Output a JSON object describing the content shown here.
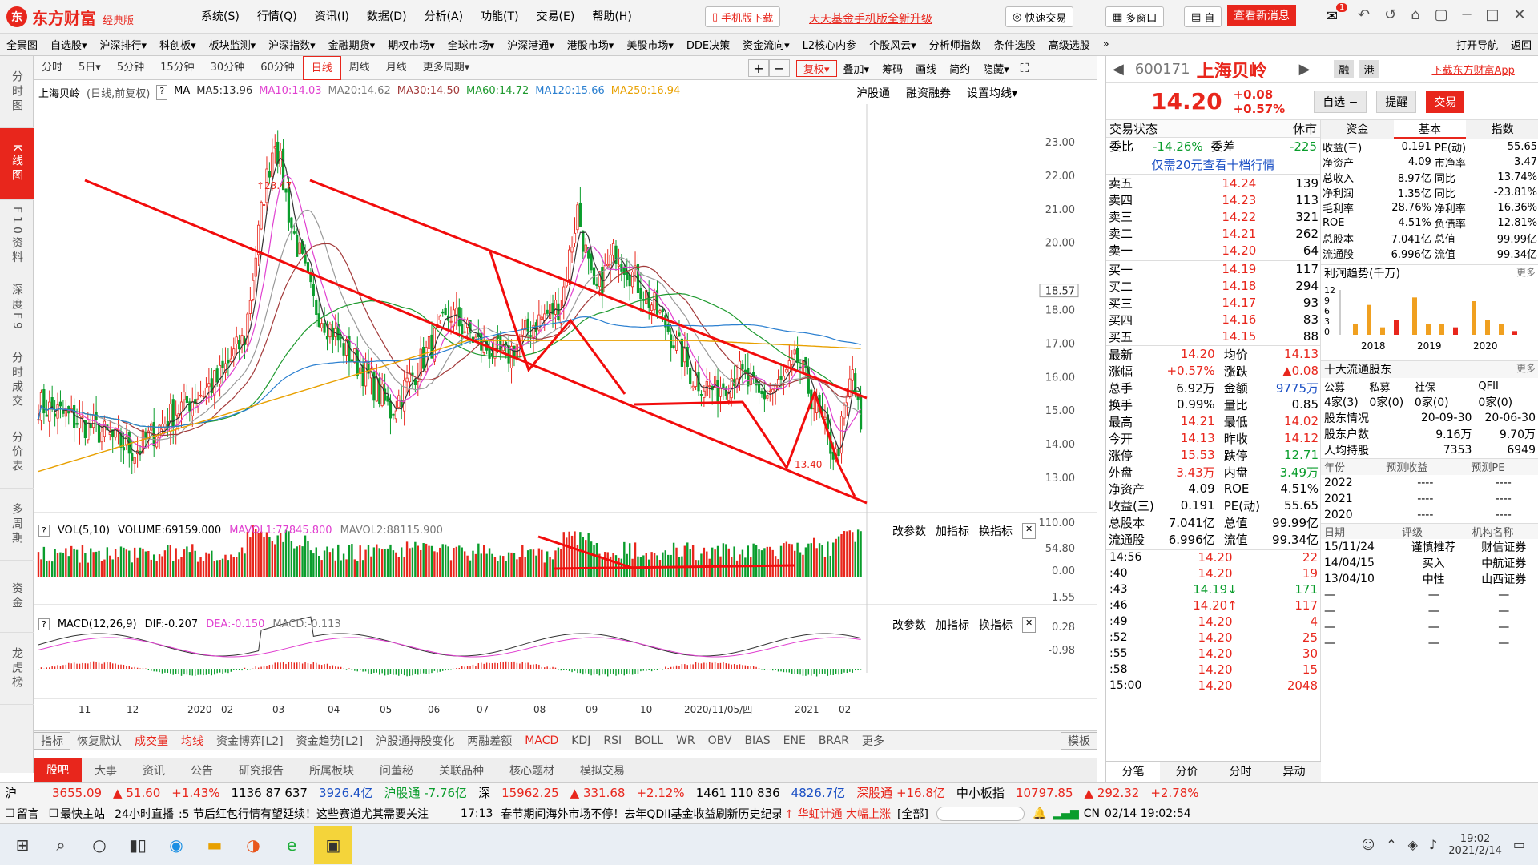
{
  "app": {
    "brand": "东方财富",
    "edition": "经典版",
    "logo_mark": "东"
  },
  "menu": [
    "系统(S)",
    "行情(Q)",
    "资讯(I)",
    "数据(D)",
    "分析(A)",
    "功能(T)",
    "交易(E)",
    "帮助(H)"
  ],
  "topbuttons": {
    "mobile": "手机版下载",
    "fund": "天天基金手机版全新升级",
    "quick_trade": "快速交易",
    "multi_window": "多窗口",
    "custom": "自",
    "news": "查看新消息",
    "badge": "1"
  },
  "nav": [
    "全景图",
    "自选股▾",
    "沪深排行▾",
    "科创板▾",
    "板块监测▾",
    "沪深指数▾",
    "金融期货▾",
    "期权市场▾",
    "全球市场▾",
    "沪深港通▾",
    "港股市场▾",
    "美股市场▾",
    "DDE决策",
    "资金流向▾",
    "L2核心内参",
    "个股风云▾",
    "分析师指数",
    "条件选股",
    "高级选股",
    "»",
    "打开导航",
    "返回"
  ],
  "lefttabs": [
    "分时图",
    "K线图",
    "F10资料",
    "深度F9",
    "分时成交",
    "分价表",
    "多周期",
    "资金",
    "龙虎榜"
  ],
  "periods": [
    "分时",
    "5日▾",
    "5分钟",
    "15分钟",
    "30分钟",
    "60分钟",
    "日线",
    "周线",
    "月线",
    "更多周期▾"
  ],
  "toolbar_right": [
    "复权▾",
    "叠加▾",
    "筹码",
    "画线",
    "简约",
    "隐藏▾"
  ],
  "chart_header": {
    "name": "上海贝岭",
    "desc": "(日线,前复权)",
    "ma_label": "MA",
    "ma5": "MA5:13.96",
    "ma10": "MA10:14.03",
    "ma20": "MA20:14.62",
    "ma30": "MA30:14.50",
    "ma60": "MA60:14.72",
    "ma120": "MA120:15.66",
    "ma250": "MA250:16.94",
    "links": [
      "沪股通",
      "融资融券",
      "设置均线▾"
    ]
  },
  "price_axis": [
    "23.00",
    "22.00",
    "21.00",
    "20.00",
    "18.57",
    "18.00",
    "17.00",
    "16.00",
    "15.00",
    "14.00",
    "13.00"
  ],
  "vol_axis": [
    "110.00",
    "54.80",
    "0.00"
  ],
  "macd_axis": [
    "1.55",
    "0.28",
    "-0.98"
  ],
  "time_axis": [
    "11",
    "12",
    "2020",
    "02",
    "03",
    "04",
    "05",
    "06",
    "07",
    "08",
    "09",
    "10",
    "2020/11/05/四",
    "2021",
    "02"
  ],
  "hi_label": "23.47",
  "lo_label": "13.40",
  "vol_header": {
    "name": "VOL(5,10)",
    "volume": "VOLUME:69159.000",
    "mavol1": "MAVOL1:77845.800",
    "mavol2": "MAVOL2:88115.900",
    "actions": [
      "改参数",
      "加指标",
      "换指标"
    ]
  },
  "macd_header": {
    "name": "MACD(12,26,9)",
    "dif": "DIF:-0.207",
    "dea": "DEA:-0.150",
    "macd": "MACD:-0.113",
    "actions": [
      "改参数",
      "加指标",
      "换指标"
    ]
  },
  "indicator_tabs": [
    "指标",
    "恢复默认",
    "成交量",
    "均线",
    "资金博弈[L2]",
    "资金趋势[L2]",
    "沪股通持股变化",
    "两融差额",
    "MACD",
    "KDJ",
    "RSI",
    "BOLL",
    "WR",
    "OBV",
    "BIAS",
    "ENE",
    "BRAR",
    "更多",
    "模板"
  ],
  "news_tabs": [
    "股吧",
    "大事",
    "资讯",
    "公告",
    "研究报告",
    "所属板块",
    "问董秘",
    "关联品种",
    "核心题材",
    "模拟交易"
  ],
  "stock": {
    "code": "600171",
    "name": "上海贝岭",
    "price": "14.20",
    "change": "+0.08",
    "pct": "+0.57%",
    "tags": [
      "融",
      "港"
    ],
    "download": "下载东方财富App",
    "btn_watch": "自选 −",
    "btn_alert": "提醒",
    "btn_trade": "交易"
  },
  "status": {
    "label": "交易状态",
    "value": "休市",
    "weibi_label": "委比",
    "weibi": "-14.26%",
    "weicha_label": "委差",
    "weicha": "-225",
    "promo": "仅需20元查看十档行情"
  },
  "sells": [
    [
      "卖五",
      "14.24",
      "139"
    ],
    [
      "卖四",
      "14.23",
      "113"
    ],
    [
      "卖三",
      "14.22",
      "321"
    ],
    [
      "卖二",
      "14.21",
      "262"
    ],
    [
      "卖一",
      "14.20",
      "64"
    ]
  ],
  "buys": [
    [
      "买一",
      "14.19",
      "117"
    ],
    [
      "买二",
      "14.18",
      "294"
    ],
    [
      "买三",
      "14.17",
      "93"
    ],
    [
      "买四",
      "14.16",
      "83"
    ],
    [
      "买五",
      "14.15",
      "88"
    ]
  ],
  "stats": [
    [
      "最新",
      "14.20",
      "均价",
      "14.13"
    ],
    [
      "涨幅",
      "+0.57%",
      "涨跌",
      "▲0.08"
    ],
    [
      "总手",
      "6.92万",
      "金额",
      "9775万"
    ],
    [
      "换手",
      "0.99%",
      "量比",
      "0.85"
    ],
    [
      "最高",
      "14.21",
      "最低",
      "14.02"
    ],
    [
      "今开",
      "14.13",
      "昨收",
      "14.12"
    ],
    [
      "涨停",
      "15.53",
      "跌停",
      "12.71"
    ],
    [
      "外盘",
      "3.43万",
      "内盘",
      "3.49万"
    ],
    [
      "净资产",
      "4.09",
      "ROE",
      "4.51%"
    ],
    [
      "收益(三)",
      "0.191",
      "PE(动)",
      "55.65"
    ],
    [
      "总股本",
      "7.041亿",
      "总值",
      "99.99亿"
    ],
    [
      "流通股",
      "6.996亿",
      "流值",
      "99.34亿"
    ]
  ],
  "ticks": [
    [
      "14:56",
      "14.20",
      "22"
    ],
    [
      ":40",
      "14.20",
      "19"
    ],
    [
      ":43",
      "14.19↓",
      "171"
    ],
    [
      ":46",
      "14.20↑",
      "117"
    ],
    [
      ":49",
      "14.20",
      "4"
    ],
    [
      ":52",
      "14.20",
      "25"
    ],
    [
      ":55",
      "14.20",
      "30"
    ],
    [
      ":58",
      "14.20",
      "15"
    ],
    [
      "15:00",
      "14.20",
      "2048"
    ]
  ],
  "right_tabs_bottom": [
    "分笔",
    "分价",
    "分时",
    "异动"
  ],
  "fund_tabs": [
    "资金",
    "基本",
    "指数"
  ],
  "fundamentals": [
    [
      "收益(三)",
      "0.191",
      "PE(动)",
      "55.65"
    ],
    [
      "净资产",
      "4.09",
      "市净率",
      "3.47"
    ],
    [
      "总收入",
      "8.97亿",
      "同比",
      "13.74%"
    ],
    [
      "净利润",
      "1.35亿",
      "同比",
      "-23.81%"
    ],
    [
      "毛利率",
      "28.76%",
      "净利率",
      "16.36%"
    ],
    [
      "ROE",
      "4.51%",
      "负债率",
      "12.81%"
    ],
    [
      "总股本",
      "7.041亿",
      "总值",
      "99.99亿"
    ],
    [
      "流通股",
      "6.996亿",
      "流值",
      "99.34亿"
    ]
  ],
  "profit": {
    "title": "利润趋势(千万)",
    "more": "更多",
    "axis": [
      "12",
      "9",
      "6",
      "3",
      "0"
    ],
    "years": [
      "2018",
      "2019",
      "2020"
    ],
    "bars": [
      3,
      8,
      2,
      4,
      10,
      3,
      3,
      2,
      9,
      4,
      3,
      1
    ]
  },
  "holders": {
    "title": "十大流通股东",
    "more": "更多",
    "heads": [
      "公募",
      "私募",
      "社保",
      "QFII"
    ],
    "vals": [
      "4家(3)",
      "0家(0)",
      "0家(0)",
      "0家(0)"
    ],
    "rows": [
      [
        "股东情况",
        "20-09-30",
        "20-06-30"
      ],
      [
        "股东户数",
        "9.16万",
        "9.70万"
      ],
      [
        "人均持股",
        "7353",
        "6949"
      ]
    ]
  },
  "forecast": {
    "heads": [
      "年份",
      "预测收益",
      "预测PE"
    ],
    "rows": [
      [
        "2022",
        "----",
        "----"
      ],
      [
        "2021",
        "----",
        "----"
      ],
      [
        "2020",
        "----",
        "----"
      ]
    ]
  },
  "rating": {
    "heads": [
      "日期",
      "评级",
      "机构名称"
    ],
    "rows": [
      [
        "15/11/24",
        "谨慎推荐",
        "财信证券"
      ],
      [
        "14/04/15",
        "买入",
        "中航证券"
      ],
      [
        "13/04/10",
        "中性",
        "山西证券"
      ],
      [
        "—",
        "—",
        "—"
      ],
      [
        "—",
        "—",
        "—"
      ],
      [
        "—",
        "—",
        "—"
      ],
      [
        "—",
        "—",
        "—"
      ]
    ]
  },
  "ticker": {
    "sh": "沪",
    "sh_idx": "3655.09",
    "sh_ch": "▲ 51.60",
    "sh_pct": "+1.43%",
    "sh_cnt": "1136 87 637",
    "sh_amt": "3926.4亿",
    "hgt": "沪股通 -7.76亿",
    "sz": "深",
    "sz_idx": "15962.25",
    "sz_ch": "▲ 331.68",
    "sz_pct": "+2.12%",
    "sz_cnt": "1461 110 836",
    "sz_amt": "4826.7亿",
    "sgt": "深股通 +16.8亿",
    "zx": "中小板指",
    "zx_idx": "10797.85",
    "zx_ch": "▲ 292.32",
    "zx_pct": "+2.78%"
  },
  "newsline": {
    "msg": "留言",
    "login": "最快主站",
    "label": "24小时直播",
    "item1": ":5  节后红包行情有望延续！这些赛道尤其需要关注",
    "time": "17:13",
    "item2": "春节期间海外市场不停！去年QDII基金收益刷新历史纪录 牛年能?",
    "tip": "↑ 华虹计通 大幅上涨",
    "all": "[全部]",
    "lang": "CN",
    "clock": "02/14 19:02:54"
  },
  "taskbar": {
    "time": "19:02",
    "date": "2021/2/14"
  },
  "colors": {
    "accent": "#e8261c",
    "up": "#e8261c",
    "down": "#0a9d2c"
  }
}
